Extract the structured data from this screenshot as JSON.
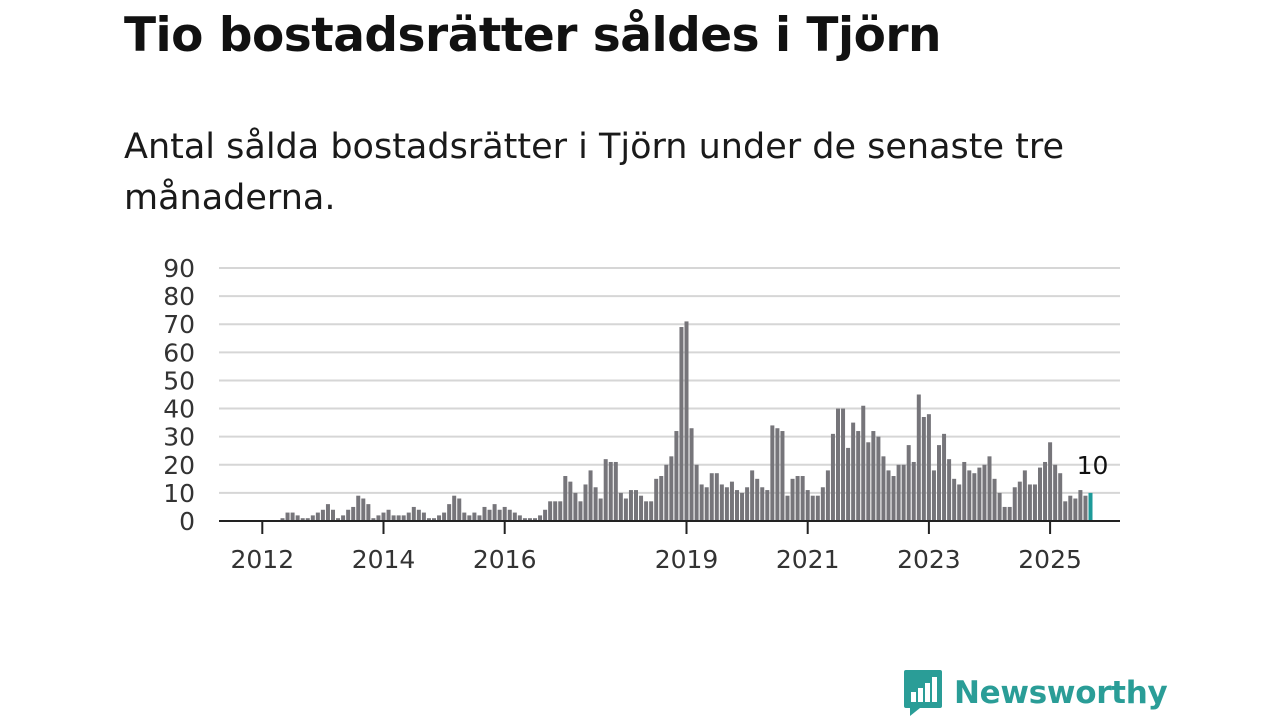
{
  "header": {
    "title": "Tio bostadsrätter såldes i Tjörn",
    "subtitle": "Antal sålda bostadsrätter i Tjörn under de senaste tre månaderna."
  },
  "brand": {
    "name": "Newsworthy",
    "logo_icon": "bar-chart-speech-bubble-icon",
    "color": "#2a9d97"
  },
  "colors": {
    "bar": "#76757a",
    "highlight": "#1d9a99",
    "grid": "#d6d6d6",
    "axis": "#222222"
  },
  "chart_data": {
    "type": "bar",
    "title": "Tio bostadsrätter såldes i Tjörn",
    "subtitle": "Antal sålda bostadsrätter i Tjörn under de senaste tre månaderna.",
    "ylim": [
      0,
      90
    ],
    "yticks": [
      0,
      10,
      20,
      30,
      40,
      50,
      60,
      70,
      80,
      90
    ],
    "x_tick_labels": [
      "2012",
      "2014",
      "2016",
      "2019",
      "2021",
      "2023",
      "2025"
    ],
    "grid": true,
    "last_value_label": "10",
    "x_start": "2011-01",
    "x_interval": "month",
    "values": [
      0,
      0,
      0,
      0,
      0,
      0,
      0,
      0,
      0,
      0,
      0,
      0,
      0,
      0,
      0,
      0,
      1,
      3,
      3,
      2,
      1,
      1,
      2,
      3,
      4,
      6,
      4,
      1,
      2,
      4,
      5,
      9,
      8,
      6,
      1,
      2,
      3,
      4,
      2,
      2,
      2,
      3,
      5,
      4,
      3,
      1,
      1,
      2,
      3,
      6,
      9,
      8,
      3,
      2,
      3,
      2,
      5,
      4,
      6,
      4,
      5,
      4,
      3,
      2,
      1,
      1,
      1,
      2,
      4,
      7,
      7,
      7,
      16,
      14,
      10,
      7,
      13,
      18,
      12,
      8,
      22,
      21,
      21,
      10,
      8,
      11,
      11,
      9,
      7,
      7,
      15,
      16,
      20,
      23,
      32,
      69,
      71,
      33,
      20,
      13,
      12,
      17,
      17,
      13,
      12,
      14,
      11,
      10,
      12,
      18,
      15,
      12,
      11,
      34,
      33,
      32,
      9,
      15,
      16,
      16,
      11,
      9,
      9,
      12,
      18,
      31,
      40,
      40,
      26,
      35,
      32,
      41,
      28,
      32,
      30,
      23,
      18,
      16,
      20,
      20,
      27,
      21,
      45,
      37,
      38,
      18,
      27,
      31,
      22,
      15,
      13,
      21,
      18,
      17,
      19,
      20,
      23,
      15,
      10,
      5,
      5,
      12,
      14,
      18,
      13,
      13,
      19,
      21,
      28,
      20,
      17,
      7,
      9,
      8,
      11,
      9,
      10
    ]
  }
}
